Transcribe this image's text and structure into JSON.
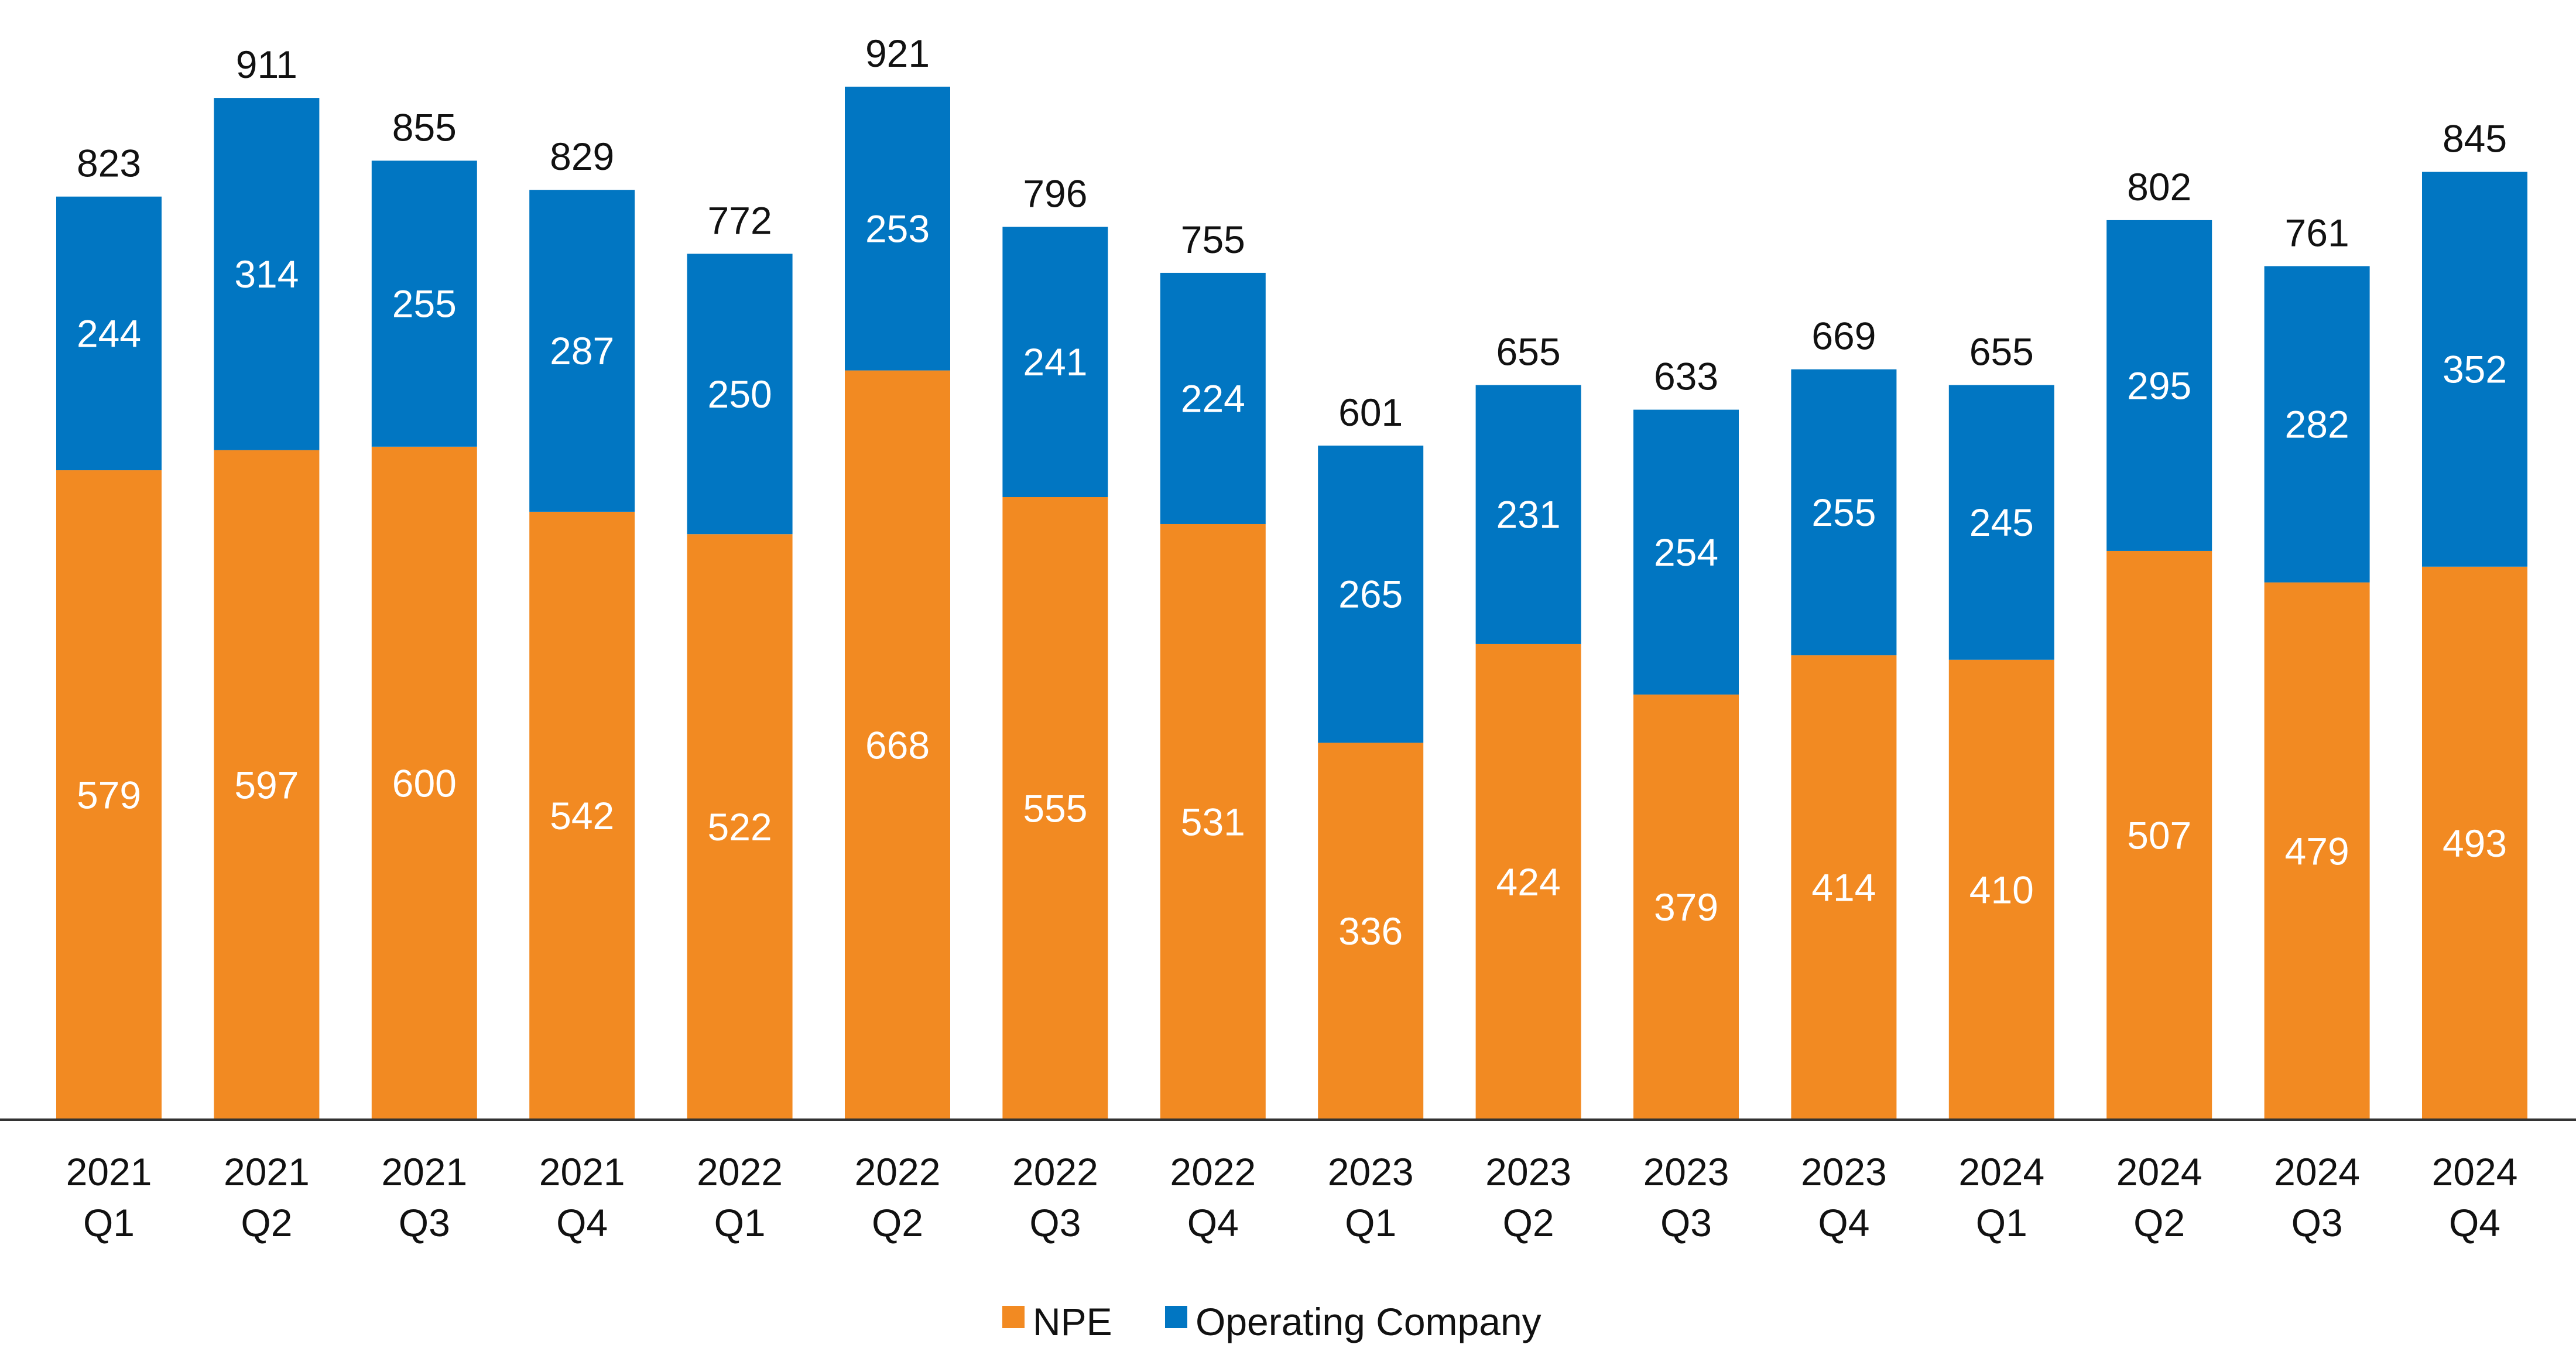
{
  "chart_data": {
    "type": "bar",
    "stacked": true,
    "categories": [
      [
        "2021",
        "Q1"
      ],
      [
        "2021",
        "Q2"
      ],
      [
        "2021",
        "Q3"
      ],
      [
        "2021",
        "Q4"
      ],
      [
        "2022",
        "Q1"
      ],
      [
        "2022",
        "Q2"
      ],
      [
        "2022",
        "Q3"
      ],
      [
        "2022",
        "Q4"
      ],
      [
        "2023",
        "Q1"
      ],
      [
        "2023",
        "Q2"
      ],
      [
        "2023",
        "Q3"
      ],
      [
        "2023",
        "Q4"
      ],
      [
        "2024",
        "Q1"
      ],
      [
        "2024",
        "Q2"
      ],
      [
        "2024",
        "Q3"
      ],
      [
        "2024",
        "Q4"
      ]
    ],
    "series": [
      {
        "name": "NPE",
        "color": "#F28A22",
        "values": [
          579,
          597,
          600,
          542,
          522,
          668,
          555,
          531,
          336,
          424,
          379,
          414,
          410,
          507,
          479,
          493
        ]
      },
      {
        "name": "Operating Company",
        "color": "#0176C2",
        "values": [
          244,
          314,
          255,
          287,
          250,
          253,
          241,
          224,
          265,
          231,
          254,
          255,
          245,
          295,
          282,
          352
        ]
      }
    ],
    "totals": [
      823,
      911,
      855,
      829,
      772,
      921,
      796,
      755,
      601,
      655,
      633,
      669,
      655,
      802,
      761,
      845
    ],
    "title": "",
    "xlabel": "",
    "ylabel": "",
    "ylim": [
      0,
      921
    ],
    "grid": false,
    "legend": "bottom-center"
  }
}
